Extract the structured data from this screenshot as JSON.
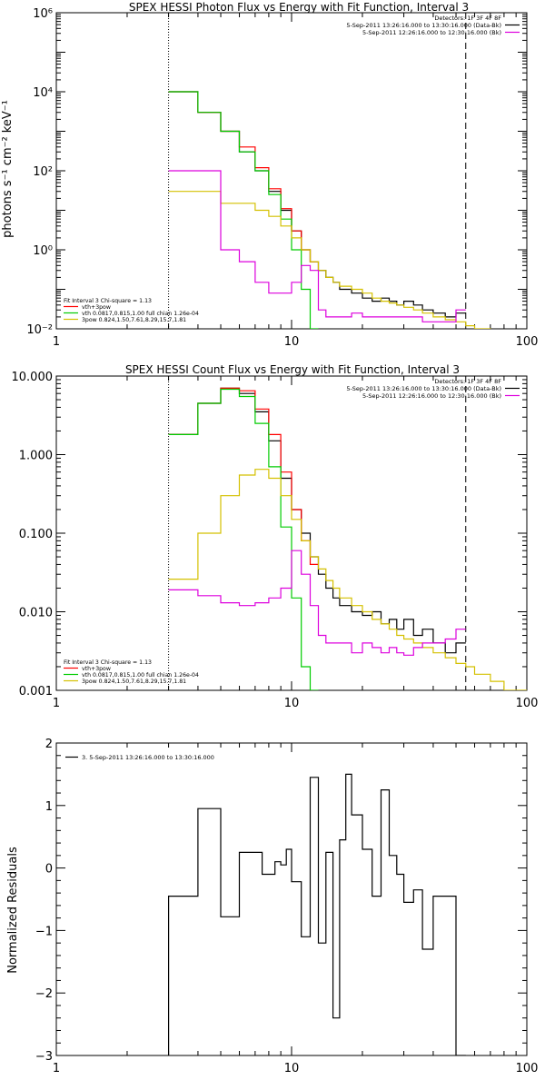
{
  "chart_data": [
    {
      "type": "line",
      "title": "SPEX HESSI Photon Flux vs Energy with Fit Function, Interval 3",
      "ylabel": "photons s⁻¹ cm⁻² keV⁻¹",
      "xlabel": "",
      "xscale": "log",
      "yscale": "log",
      "xlim": [
        1,
        100
      ],
      "ylim": [
        0.01,
        1000000
      ],
      "x_ticks": [
        1,
        10,
        100
      ],
      "x_tick_labels": [
        "1",
        "10",
        "100"
      ],
      "y_ticks": [
        0.01,
        1,
        100,
        10000,
        1000000
      ],
      "y_tick_labels": [
        "10⁻²",
        "10⁰",
        "10²",
        "10⁴",
        "10⁶"
      ],
      "vlines": [
        {
          "x": 3,
          "style": "dotted"
        },
        {
          "x": 55,
          "style": "dashed"
        }
      ],
      "legend_top_right": [
        "Detectors: 1F 3F 4F 8F",
        "5-Sep-2011 13:26:16.000 to 13:30:16.000 (Data-Bk)",
        "5-Sep-2011 12:26:16.000 to 12:30:16.000 (Bk)"
      ],
      "legend_top_right_colors": [
        "",
        "#000000",
        "#dd00dd"
      ],
      "legend_bottom_left": [
        "Fit Interval 3   Chi-square = 1.13",
        "vth+3pow",
        "vth 0.0817,0.815,1.00  full chian 1.26e-04",
        "3pow 0.824,1.50,7.61,8.29,15.7,1.81"
      ],
      "legend_bottom_left_colors": [
        "",
        "#ff0000",
        "#00cc00",
        "#d4c000"
      ],
      "series": [
        {
          "color": "#000000",
          "edges": [
            3,
            4,
            5,
            6,
            7,
            8,
            9,
            10,
            11,
            12,
            13,
            14,
            15,
            16,
            18,
            20,
            22,
            24,
            26,
            28,
            30,
            33,
            36,
            40,
            45,
            50,
            55
          ],
          "values": [
            10000,
            3000,
            1000,
            300,
            100,
            30,
            10,
            3,
            1,
            0.5,
            0.3,
            0.2,
            0.15,
            0.1,
            0.08,
            0.06,
            0.05,
            0.06,
            0.05,
            0.04,
            0.05,
            0.04,
            0.03,
            0.025,
            0.02,
            0.025
          ]
        },
        {
          "color": "#ff0000",
          "edges": [
            3,
            4,
            5,
            6,
            7,
            8,
            9,
            10,
            11,
            12,
            13
          ],
          "values": [
            10000,
            3000,
            1000,
            400,
            120,
            35,
            11,
            3,
            1,
            0.5
          ]
        },
        {
          "color": "#00cc00",
          "edges": [
            3,
            4,
            5,
            6,
            7,
            8,
            9,
            10,
            11,
            12,
            13
          ],
          "values": [
            10000,
            3000,
            1000,
            300,
            100,
            25,
            6,
            1,
            0.1,
            0.01
          ]
        },
        {
          "color": "#d4c000",
          "edges": [
            3,
            4,
            5,
            6,
            7,
            8,
            9,
            10,
            11,
            12,
            13,
            14,
            15,
            16,
            18,
            20,
            22,
            24,
            26,
            28,
            30,
            33,
            36,
            40,
            45,
            50,
            55,
            60,
            70,
            80,
            100
          ],
          "values": [
            30,
            30,
            15,
            15,
            10,
            7,
            4,
            2,
            1,
            0.5,
            0.3,
            0.2,
            0.15,
            0.12,
            0.1,
            0.08,
            0.06,
            0.05,
            0.045,
            0.04,
            0.035,
            0.03,
            0.025,
            0.02,
            0.017,
            0.015,
            0.012,
            0.01,
            0.008,
            0.006
          ]
        },
        {
          "color": "#dd00dd",
          "edges": [
            3,
            4,
            5,
            6,
            7,
            8,
            9,
            10,
            11,
            12,
            13,
            14,
            15,
            16,
            18,
            20,
            22,
            24,
            26,
            28,
            30,
            33,
            36,
            40,
            45,
            50,
            55
          ],
          "values": [
            100,
            100,
            1,
            0.5,
            0.15,
            0.08,
            0.08,
            0.15,
            0.4,
            0.3,
            0.03,
            0.02,
            0.02,
            0.02,
            0.025,
            0.02,
            0.02,
            0.02,
            0.02,
            0.02,
            0.02,
            0.02,
            0.015,
            0.015,
            0.015,
            0.03
          ]
        }
      ]
    },
    {
      "type": "line",
      "title": "SPEX HESSI Count Flux vs Energy with Fit Function, Interval 3",
      "ylabel": "",
      "xlabel": "",
      "xscale": "log",
      "yscale": "log",
      "xlim": [
        1,
        100
      ],
      "ylim": [
        0.001,
        10
      ],
      "x_ticks": [
        1,
        10,
        100
      ],
      "x_tick_labels": [
        "1",
        "10",
        "100"
      ],
      "y_ticks": [
        0.001,
        0.01,
        0.1,
        1,
        10
      ],
      "y_tick_labels": [
        "0.001",
        "0.010",
        "0.100",
        "1.000",
        "10.000"
      ],
      "vlines": [
        {
          "x": 3,
          "style": "dotted"
        },
        {
          "x": 55,
          "style": "dashed"
        }
      ],
      "legend_top_right": [
        "Detectors: 1F 3F 4F 8F",
        "5-Sep-2011 13:26:16.000 to 13:30:16.000 (Data-Bk)",
        "5-Sep-2011 12:26:16.000 to 12:30:16.000 (Bk)"
      ],
      "legend_top_right_colors": [
        "",
        "#000000",
        "#dd00dd"
      ],
      "legend_bottom_left": [
        "Fit Interval 3   Chi-square = 1.13",
        "vth+3pow",
        "vth 0.0817,0.815,1.00  full chian 1.26e-04",
        "3pow 0.824,1.50,7.61,8.29,15.7,1.81"
      ],
      "legend_bottom_left_colors": [
        "",
        "#ff0000",
        "#00cc00",
        "#d4c000"
      ],
      "series": [
        {
          "color": "#000000",
          "edges": [
            3,
            4,
            5,
            6,
            7,
            8,
            9,
            10,
            11,
            12,
            13,
            14,
            15,
            16,
            18,
            20,
            22,
            24,
            26,
            28,
            30,
            33,
            36,
            40,
            45,
            50,
            55
          ],
          "values": [
            1.8,
            4.5,
            7,
            6,
            3.5,
            1.5,
            0.5,
            0.2,
            0.1,
            0.05,
            0.03,
            0.02,
            0.015,
            0.012,
            0.01,
            0.009,
            0.01,
            0.007,
            0.008,
            0.006,
            0.008,
            0.005,
            0.006,
            0.004,
            0.003,
            0.004
          ]
        },
        {
          "color": "#ff0000",
          "edges": [
            3,
            4,
            5,
            6,
            7,
            8,
            9,
            10,
            11,
            12,
            13
          ],
          "values": [
            1.8,
            4.5,
            7,
            6.5,
            3.8,
            1.8,
            0.6,
            0.2,
            0.08,
            0.04
          ]
        },
        {
          "color": "#00cc00",
          "edges": [
            3,
            4,
            5,
            6,
            7,
            8,
            9,
            10,
            11,
            12,
            13
          ],
          "values": [
            1.8,
            4.5,
            6.8,
            5.5,
            2.5,
            0.7,
            0.12,
            0.015,
            0.002,
            0.001
          ]
        },
        {
          "color": "#d4c000",
          "edges": [
            3,
            4,
            5,
            6,
            7,
            8,
            9,
            10,
            11,
            12,
            13,
            14,
            15,
            16,
            18,
            20,
            22,
            24,
            26,
            28,
            30,
            33,
            36,
            40,
            45,
            50,
            55,
            60,
            70,
            80,
            100
          ],
          "values": [
            0.026,
            0.1,
            0.3,
            0.55,
            0.65,
            0.5,
            0.3,
            0.15,
            0.08,
            0.05,
            0.035,
            0.025,
            0.02,
            0.015,
            0.012,
            0.01,
            0.008,
            0.007,
            0.006,
            0.005,
            0.0045,
            0.004,
            0.0035,
            0.003,
            0.0026,
            0.0022,
            0.002,
            0.0016,
            0.0013,
            0.001
          ]
        },
        {
          "color": "#dd00dd",
          "edges": [
            3,
            4,
            5,
            6,
            7,
            8,
            9,
            10,
            11,
            12,
            13,
            14,
            15,
            16,
            18,
            20,
            22,
            24,
            26,
            28,
            30,
            33,
            36,
            40,
            45,
            50,
            55
          ],
          "values": [
            0.019,
            0.016,
            0.013,
            0.012,
            0.013,
            0.015,
            0.02,
            0.06,
            0.03,
            0.012,
            0.005,
            0.004,
            0.004,
            0.004,
            0.003,
            0.004,
            0.0035,
            0.003,
            0.0035,
            0.003,
            0.0028,
            0.0035,
            0.004,
            0.004,
            0.0045,
            0.006
          ]
        }
      ]
    },
    {
      "type": "line",
      "title": "",
      "ylabel": "Normalized Residuals",
      "xlabel": "",
      "xscale": "log",
      "yscale": "linear",
      "xlim": [
        1,
        100
      ],
      "ylim": [
        -3,
        2
      ],
      "x_ticks": [
        1,
        10,
        100
      ],
      "x_tick_labels": [
        "1",
        "10",
        "100"
      ],
      "y_ticks": [
        -3,
        -2,
        -1,
        0,
        1,
        2
      ],
      "y_tick_labels": [
        "−3",
        "−2",
        "−1",
        "0",
        "1",
        "2"
      ],
      "legend_top_left": [
        "3.  5-Sep-2011 13:26:16.000 to 13:30:16.000"
      ],
      "legend_top_left_colors": [
        "#000000"
      ],
      "series": [
        {
          "color": "#000000",
          "edges": [
            3,
            3.5,
            4,
            4.5,
            5,
            6,
            7,
            7.5,
            8,
            8.5,
            9,
            9.5,
            10,
            11,
            12,
            13,
            14,
            15,
            16,
            17,
            18,
            20,
            22,
            24,
            26,
            28,
            30,
            33,
            36,
            40,
            45,
            50,
            55
          ],
          "values": [
            -0.45,
            -0.45,
            0.95,
            0.95,
            -0.78,
            0.25,
            0.25,
            -0.1,
            -0.1,
            0.1,
            0.05,
            0.3,
            -0.22,
            -1.1,
            1.45,
            -1.2,
            0.25,
            -2.4,
            0.45,
            1.5,
            0.85,
            0.3,
            -0.45,
            1.25,
            0.2,
            -0.1,
            -0.55,
            -0.35,
            -1.3,
            -0.45,
            -0.45,
            -3
          ]
        }
      ]
    }
  ]
}
